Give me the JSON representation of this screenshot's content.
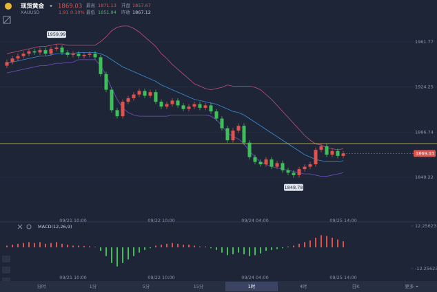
{
  "header": {
    "title": "现货黄金",
    "symbol": "XAUUSD",
    "price": 1869.03,
    "change": 1.91,
    "change_pct": "0.10%",
    "stats": [
      {
        "label": "最高",
        "value": 1871.13
      },
      {
        "label": "开盘",
        "value": 1857.67
      },
      {
        "label": "最低",
        "value": 1851.84
      },
      {
        "label": "昨收",
        "value": 1867.12
      }
    ]
  },
  "chart_data": [
    {
      "type": "candlestick",
      "categories": [
        null,
        null,
        null,
        null,
        null,
        null,
        null,
        null,
        null,
        null,
        null,
        null,
        "09/21 10:00",
        null,
        null,
        null,
        null,
        null,
        null,
        null,
        null,
        null,
        null,
        null,
        null,
        null,
        null,
        null,
        "09/22 10:00",
        null,
        null,
        null,
        null,
        null,
        null,
        null,
        null,
        null,
        null,
        null,
        null,
        null,
        null,
        null,
        null,
        "09/24 04:00",
        null,
        null,
        null,
        null,
        null,
        null,
        null,
        null,
        null,
        null,
        null,
        null,
        null,
        null,
        null,
        "09/25 14:00"
      ],
      "open": [
        1942,
        1945,
        1948,
        1950,
        1952,
        1954,
        1953,
        1955,
        1952,
        1956,
        1957,
        1953,
        1951,
        1952,
        1950,
        1951,
        1952,
        1949,
        1935,
        1922,
        1905,
        1900,
        1912,
        1915,
        1918,
        1921,
        1917,
        1920,
        1912,
        1908,
        1910,
        1913,
        1909,
        1906,
        1908,
        1910,
        1907,
        1909,
        1904,
        1898,
        1890,
        1880,
        1888,
        1892,
        1878,
        1866,
        1862,
        1860,
        1864,
        1858,
        1861,
        1855,
        1853,
        1851,
        1856,
        1858,
        1860,
        1872,
        1875,
        1868,
        1871,
        1867
      ],
      "high": [
        1947,
        1950,
        1952,
        1954,
        1956,
        1956,
        1957,
        1957,
        1958,
        1959.99,
        1959,
        1955,
        1954,
        1954,
        1953,
        1954,
        1954,
        1951,
        1937,
        1924,
        1907,
        1914,
        1917,
        1920,
        1923,
        1923,
        1922,
        1922,
        1914,
        1912,
        1915,
        1915,
        1911,
        1910,
        1912,
        1912,
        1911,
        1911,
        1906,
        1900,
        1892,
        1890,
        1894,
        1894,
        1880,
        1868,
        1864,
        1866,
        1866,
        1863,
        1863,
        1857,
        1855,
        1858,
        1860,
        1862,
        1874,
        1877,
        1877,
        1873,
        1873,
        1871.13
      ],
      "low": [
        1940,
        1943,
        1946,
        1948,
        1950,
        1951,
        1951,
        1950,
        1950,
        1954,
        1951,
        1949,
        1949,
        1948,
        1948,
        1949,
        1947,
        1933,
        1920,
        1903,
        1898,
        1898,
        1910,
        1913,
        1916,
        1915,
        1915,
        1910,
        1906,
        1906,
        1908,
        1907,
        1904,
        1904,
        1906,
        1905,
        1905,
        1902,
        1896,
        1888,
        1878,
        1878,
        1886,
        1876,
        1864,
        1860,
        1858,
        1858,
        1856,
        1856,
        1853,
        1851,
        1848.78,
        1849,
        1854,
        1856,
        1858,
        1870,
        1866,
        1866,
        1865,
        1865
      ],
      "close": [
        1945,
        1948,
        1950,
        1952,
        1954,
        1953,
        1955,
        1952,
        1956,
        1957,
        1953,
        1951,
        1952,
        1950,
        1951,
        1952,
        1949,
        1935,
        1922,
        1905,
        1900,
        1912,
        1915,
        1918,
        1921,
        1917,
        1920,
        1912,
        1908,
        1910,
        1913,
        1909,
        1906,
        1908,
        1910,
        1907,
        1909,
        1904,
        1898,
        1890,
        1880,
        1888,
        1892,
        1878,
        1866,
        1862,
        1860,
        1864,
        1858,
        1861,
        1855,
        1853,
        1851,
        1856,
        1858,
        1860,
        1872,
        1875,
        1868,
        1871,
        1867,
        1869.03
      ],
      "up_color": "#e0524c",
      "down_color": "#3fbf5a",
      "series": [
        {
          "color": "#c4527a",
          "values": [
            1952,
            1953,
            1954,
            1955,
            1956,
            1957,
            1958,
            1958,
            1959,
            1960,
            1960,
            1959,
            1959,
            1959,
            1959,
            1959,
            1959,
            1962,
            1966,
            1971,
            1974,
            1975,
            1975,
            1973,
            1970,
            1966,
            1962,
            1958,
            1952,
            1948,
            1943,
            1939,
            1935,
            1931,
            1927,
            1925,
            1923,
            1922,
            1923,
            1924,
            1926,
            1925,
            1925,
            1925,
            1925,
            1924,
            1922,
            1918,
            1914,
            1909,
            1904,
            1899,
            1894,
            1889,
            1884,
            1880,
            1877,
            1876,
            1874,
            1873,
            1872,
            1873
          ]
        },
        {
          "color": "#3a90d8",
          "values": [
            1944,
            1945,
            1946,
            1947,
            1948,
            1949,
            1950,
            1950,
            1951,
            1952,
            1952,
            1952,
            1952,
            1953,
            1953,
            1953,
            1953,
            1952,
            1950,
            1947,
            1944,
            1941,
            1939,
            1937,
            1935,
            1933,
            1931,
            1929,
            1926,
            1924,
            1922,
            1920,
            1918,
            1916,
            1914,
            1913,
            1912,
            1911,
            1910,
            1908,
            1906,
            1904,
            1903,
            1901,
            1898,
            1895,
            1892,
            1889,
            1886,
            1883,
            1880,
            1877,
            1874,
            1871,
            1868,
            1866,
            1864,
            1863,
            1862,
            1862,
            1862,
            1863
          ]
        },
        {
          "color": "#7452c8",
          "values": [
            1936,
            1937,
            1938,
            1939,
            1940,
            1941,
            1942,
            1942,
            1943,
            1944,
            1944,
            1945,
            1945,
            1947,
            1947,
            1947,
            1947,
            1942,
            1934,
            1923,
            1914,
            1907,
            1903,
            1901,
            1900,
            1900,
            1900,
            1900,
            1900,
            1900,
            1901,
            1901,
            1901,
            1901,
            1901,
            1901,
            1901,
            1900,
            1897,
            1892,
            1886,
            1883,
            1881,
            1877,
            1871,
            1866,
            1862,
            1860,
            1858,
            1857,
            1856,
            1855,
            1854,
            1853,
            1852,
            1852,
            1851,
            1850,
            1850,
            1851,
            1852,
            1853
          ]
        }
      ],
      "reference_line": 1877.2,
      "reference_color": "#d8d040",
      "ylim": [
        1813.79,
        1996.63
      ],
      "yticks": [
        1961.77,
        1924.25,
        1886.74,
        1849.22
      ]
    },
    {
      "type": "histogram",
      "title": "MACD(12,26,9)",
      "values": [
        1,
        1.5,
        2,
        2.5,
        3,
        2.5,
        3,
        2,
        2.5,
        3,
        2,
        1.5,
        1,
        1,
        0.8,
        0.6,
        0.3,
        -2,
        -5,
        -9,
        -11,
        -9,
        -7,
        -5,
        -3,
        -1.5,
        -0.5,
        1,
        1.5,
        2,
        2.5,
        2,
        1.5,
        1.5,
        1,
        0.5,
        0.5,
        -0.5,
        -1.5,
        -3,
        -4.5,
        -4,
        -3,
        -4,
        -5,
        -4.5,
        -3.5,
        -2,
        -1.5,
        -1,
        -0.5,
        0.5,
        1,
        2,
        3,
        4,
        5.5,
        7,
        6.5,
        5.5,
        4.5,
        3.5
      ],
      "ylim": [
        -12.25623,
        12.25623
      ],
      "yticks": [
        12.25623,
        -12.25623
      ]
    }
  ],
  "timeframes": {
    "items": [
      "分时",
      "1分",
      "5分",
      "15分",
      "1时",
      "4时",
      "日K",
      "更多"
    ],
    "selected": 4
  }
}
